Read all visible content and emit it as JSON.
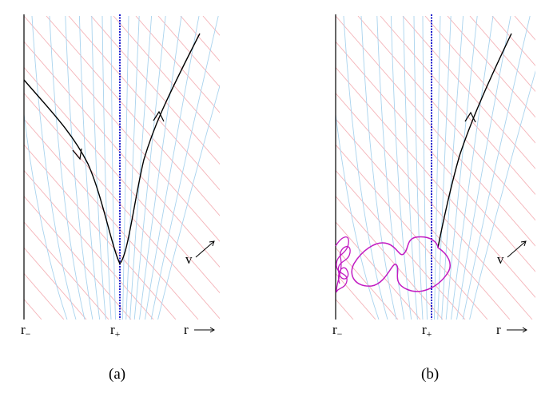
{
  "panels": [
    {
      "id": "a",
      "caption": "(a)",
      "labels": {
        "r_minus": "r",
        "r_minus_sub": "−",
        "r_plus": "r",
        "r_plus_sub": "+",
        "r_axis": "r",
        "v_axis": "v"
      },
      "trajectory": "timelike-path-bounce"
    },
    {
      "id": "b",
      "caption": "(b)",
      "labels": {
        "r_minus": "r",
        "r_minus_sub": "−",
        "r_plus": "r",
        "r_plus_sub": "+",
        "r_axis": "r",
        "v_axis": "v"
      },
      "trajectory": "timelike-path-loops"
    }
  ],
  "colors": {
    "axis": "#000000",
    "horizon": "#1a1acc",
    "null_lines_red": "#f4b3b8",
    "curves_blue": "#a9d3ee",
    "path": "#000000",
    "loop": "#c21bc2"
  },
  "icons": {
    "arrow": "arrow-right-icon",
    "diag_arrow": "arrow-up-right-icon"
  }
}
